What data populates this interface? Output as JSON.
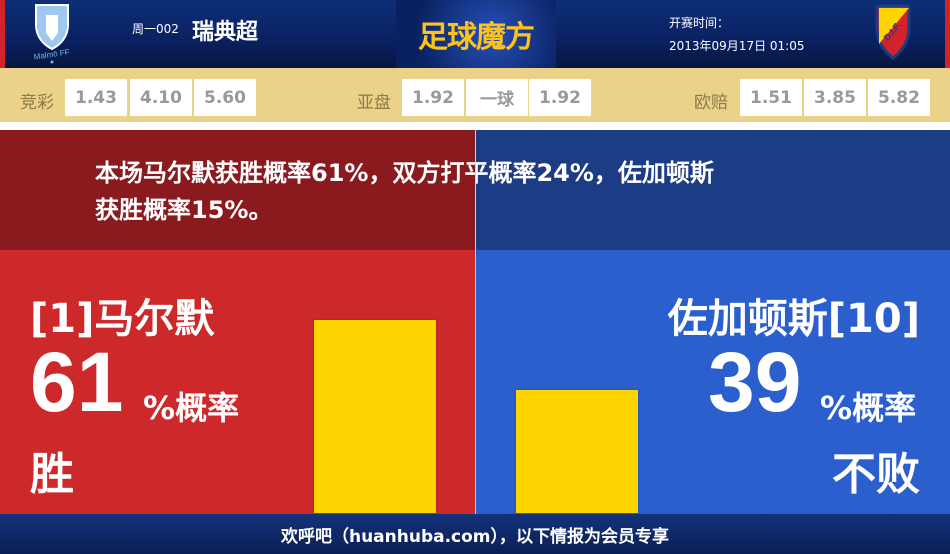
{
  "header": {
    "home_logo_text": "Malmö FF",
    "away_logo_text": "D.I.F.",
    "league_code": "周一002",
    "league": "瑞典超",
    "brand": "足球魔方",
    "start_label": "开赛时间：",
    "start_time": "2013年09月17日 01:05"
  },
  "odds": {
    "jingcai": {
      "label": "竞彩",
      "values": [
        "1.43",
        "4.10",
        "5.60"
      ]
    },
    "yapan": {
      "label": "亚盘",
      "values": [
        "1.92",
        "一球",
        "1.92"
      ]
    },
    "ouzhou": {
      "label": "欧赔",
      "values": [
        "1.51",
        "3.85",
        "5.82"
      ]
    }
  },
  "summary": {
    "line1": "本场马尔默获胜概率61%，双方打平概率24%，佐加顿斯",
    "line2": "获胜概率15%。"
  },
  "home": {
    "name": "[1]马尔默",
    "percent": "61",
    "percent_suffix": "%概率",
    "outcome": "胜",
    "bar_value": 61,
    "color": "#cd292b"
  },
  "away": {
    "name": "佐加顿斯[10]",
    "percent": "39",
    "percent_suffix": "%概率",
    "outcome": "不败",
    "bar_value": 39,
    "color": "#2b5fcd"
  },
  "bar_color": "#ffd400",
  "footer": {
    "text": "欢呼吧（huanhuba.com），以下情报为会员专享"
  }
}
